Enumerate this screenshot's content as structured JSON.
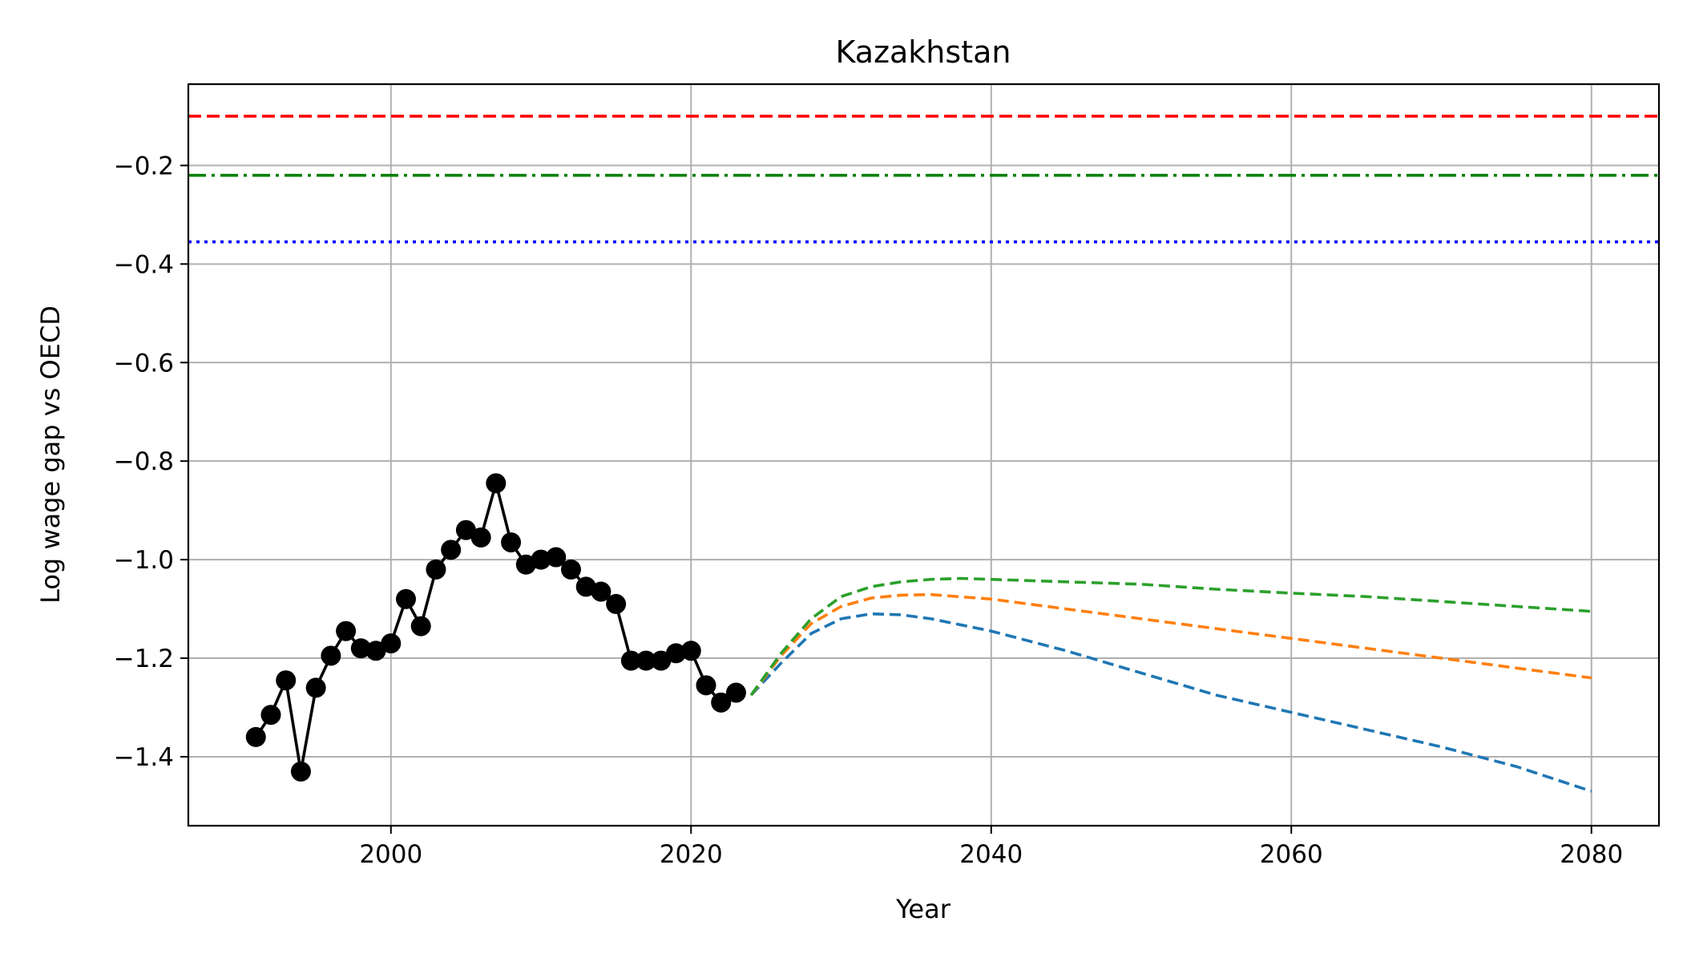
{
  "chart_data": {
    "type": "line",
    "title": "Kazakhstan",
    "xlabel": "Year",
    "ylabel": "Log wage gap vs OECD",
    "xlim": [
      1986.5,
      2084.5
    ],
    "ylim": [
      -1.54,
      -0.035
    ],
    "xticks": [
      2000,
      2020,
      2040,
      2060,
      2080
    ],
    "yticks": [
      -1.4,
      -1.2,
      -1.0,
      -0.8,
      -0.6,
      -0.4,
      -0.2
    ],
    "xtick_labels": [
      "2000",
      "2020",
      "2040",
      "2060",
      "2080"
    ],
    "ytick_labels": [
      "−1.4",
      "−1.2",
      "−1.0",
      "−0.8",
      "−0.6",
      "−0.4",
      "−0.2"
    ],
    "grid": true,
    "legend": "none",
    "hlines": [
      {
        "y": -0.1,
        "color": "#ff0000",
        "style": "dashed"
      },
      {
        "y": -0.22,
        "color": "#008000",
        "style": "dashdot"
      },
      {
        "y": -0.355,
        "color": "#0000ff",
        "style": "dotted"
      }
    ],
    "series": [
      {
        "color": "#000000",
        "style": "solid-markers",
        "x": [
          1991,
          1992,
          1993,
          1994,
          1995,
          1996,
          1997,
          1998,
          1999,
          2000,
          2001,
          2002,
          2003,
          2004,
          2005,
          2006,
          2007,
          2008,
          2009,
          2010,
          2011,
          2012,
          2013,
          2014,
          2015,
          2016,
          2017,
          2018,
          2019,
          2020,
          2021,
          2022,
          2023
        ],
        "y": [
          -1.36,
          -1.315,
          -1.245,
          -1.43,
          -1.26,
          -1.195,
          -1.145,
          -1.18,
          -1.185,
          -1.17,
          -1.08,
          -1.135,
          -1.02,
          -0.98,
          -0.94,
          -0.955,
          -0.845,
          -0.965,
          -1.01,
          -1.0,
          -0.995,
          -1.02,
          -1.055,
          -1.065,
          -1.09,
          -1.205,
          -1.205,
          -1.205,
          -1.19,
          -1.185,
          -1.255,
          -1.29,
          -1.27
        ]
      },
      {
        "color": "#1f77b4",
        "style": "dashed",
        "x": [
          2024,
          2026,
          2028,
          2030,
          2032,
          2034,
          2036,
          2040,
          2045,
          2050,
          2055,
          2060,
          2065,
          2070,
          2075,
          2080
        ],
        "y": [
          -1.275,
          -1.21,
          -1.15,
          -1.12,
          -1.11,
          -1.112,
          -1.12,
          -1.145,
          -1.185,
          -1.23,
          -1.275,
          -1.31,
          -1.345,
          -1.38,
          -1.42,
          -1.47
        ]
      },
      {
        "color": "#ff7f0e",
        "style": "dashed",
        "x": [
          2024,
          2026,
          2028,
          2030,
          2032,
          2034,
          2036,
          2040,
          2045,
          2050,
          2055,
          2060,
          2065,
          2070,
          2075,
          2080
        ],
        "y": [
          -1.275,
          -1.195,
          -1.13,
          -1.095,
          -1.078,
          -1.072,
          -1.071,
          -1.08,
          -1.1,
          -1.12,
          -1.14,
          -1.16,
          -1.18,
          -1.2,
          -1.22,
          -1.24
        ]
      },
      {
        "color": "#2ca02c",
        "style": "dashed",
        "x": [
          2024,
          2026,
          2028,
          2030,
          2032,
          2034,
          2036,
          2038,
          2040,
          2045,
          2050,
          2055,
          2060,
          2065,
          2070,
          2075,
          2080
        ],
        "y": [
          -1.275,
          -1.19,
          -1.12,
          -1.075,
          -1.055,
          -1.045,
          -1.04,
          -1.038,
          -1.04,
          -1.045,
          -1.05,
          -1.06,
          -1.068,
          -1.075,
          -1.085,
          -1.095,
          -1.105
        ]
      }
    ]
  }
}
